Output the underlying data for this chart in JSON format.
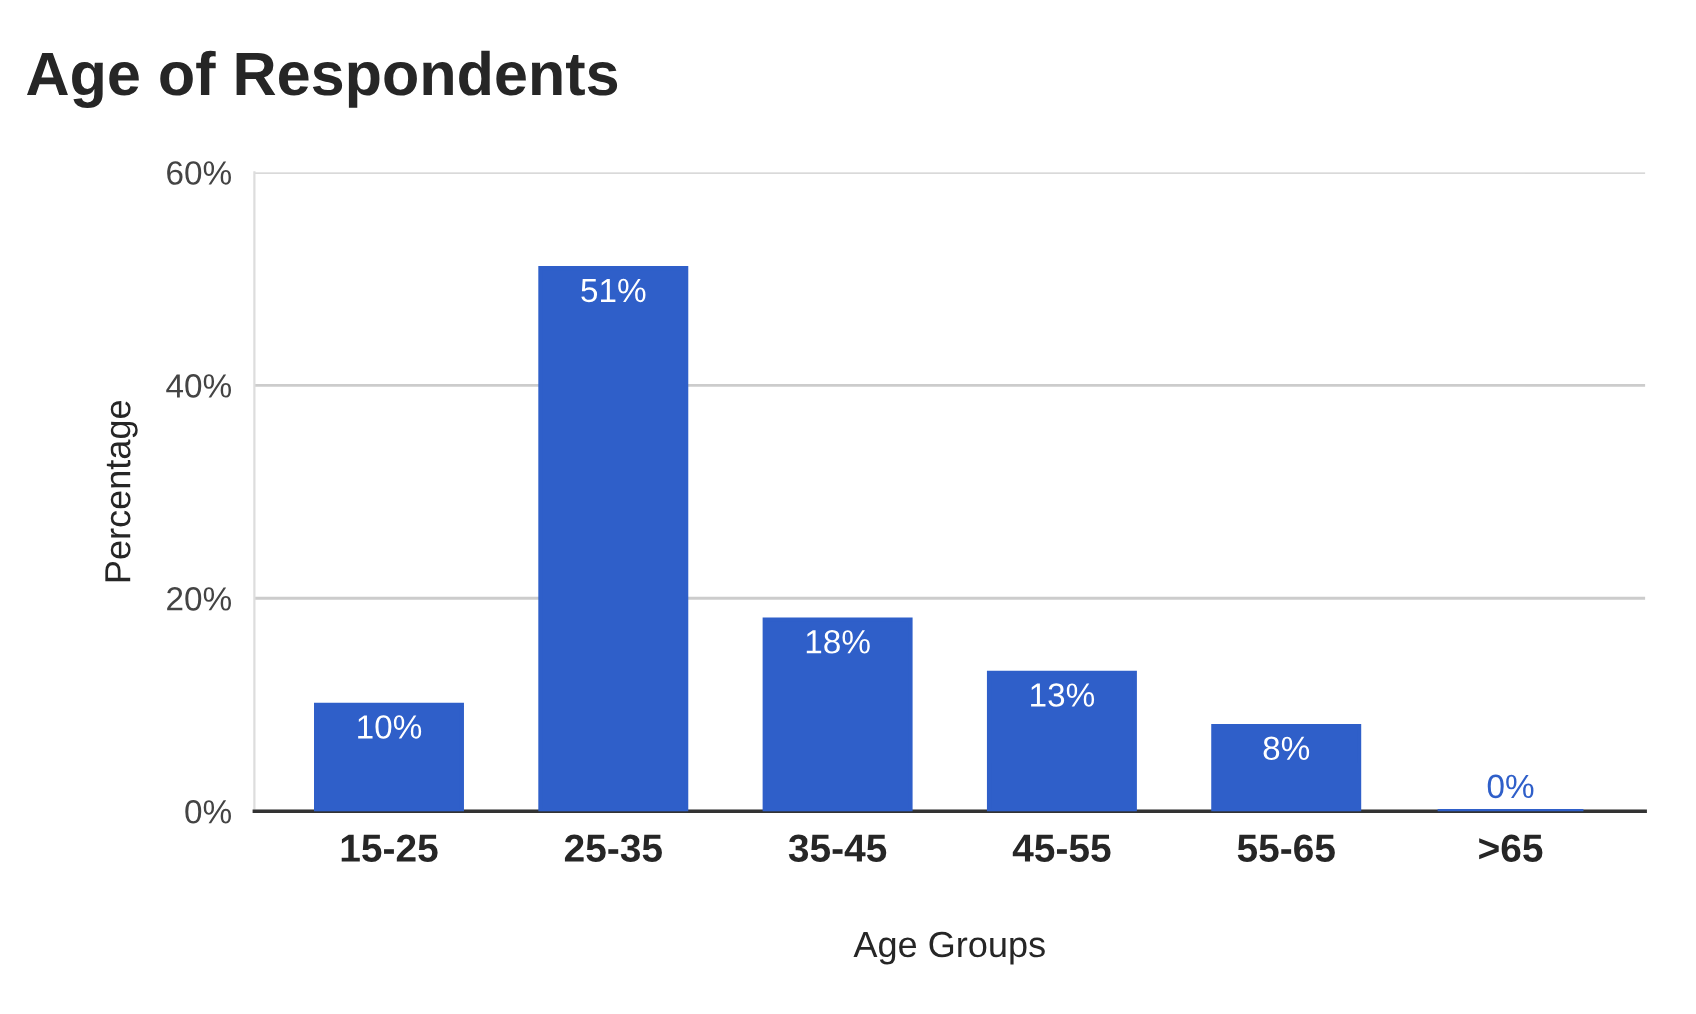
{
  "chart_data": {
    "type": "bar",
    "title": "Age of Respondents",
    "xlabel": "Age Groups",
    "ylabel": "Percentage",
    "categories": [
      "15-25",
      "25-35",
      "35-45",
      "45-55",
      "55-65",
      ">65"
    ],
    "values": [
      10,
      51,
      18,
      13,
      8,
      0
    ],
    "value_labels": [
      "10%",
      "51%",
      "18%",
      "13%",
      "8%",
      "0%"
    ],
    "color": "#2f5fc9",
    "ylim": [
      0,
      60
    ],
    "yticks": [
      {
        "value": 0,
        "label": "0%"
      },
      {
        "value": 20,
        "label": "20%"
      },
      {
        "value": 40,
        "label": "40%"
      },
      {
        "value": 60,
        "label": "60%"
      }
    ],
    "grid": "y",
    "legend": false
  }
}
